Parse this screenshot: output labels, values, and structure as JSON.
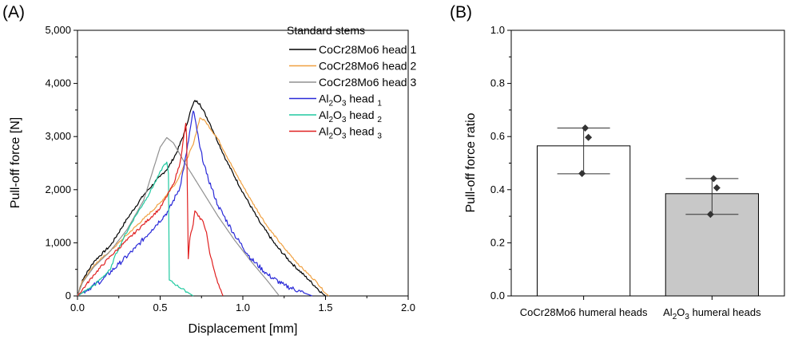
{
  "panel_labels": [
    "(A)",
    "(B)"
  ],
  "chart_data": [
    {
      "type": "line",
      "panel": "(A)",
      "xlabel": "Displacement [mm]",
      "ylabel": "Pull-off force [N]",
      "xlim": [
        0,
        2
      ],
      "ylim": [
        0,
        5000
      ],
      "xticks": [
        "0.0",
        "0.5",
        "1.0",
        "1.5",
        "2.0"
      ],
      "yticks": [
        "0",
        "1,000",
        "2,000",
        "3,000",
        "4,000",
        "5,000"
      ],
      "legend_title": "Standard stems",
      "legend_position": "top-right",
      "series": [
        {
          "name": "CoCr28Mo6 head 1",
          "color": "#000000",
          "noise": 25,
          "points": [
            [
              0,
              0
            ],
            [
              0.03,
              300
            ],
            [
              0.1,
              650
            ],
            [
              0.2,
              950
            ],
            [
              0.3,
              1450
            ],
            [
              0.4,
              1900
            ],
            [
              0.5,
              2250
            ],
            [
              0.55,
              2420
            ],
            [
              0.6,
              2700
            ],
            [
              0.65,
              3100
            ],
            [
              0.68,
              3450
            ],
            [
              0.71,
              3680
            ],
            [
              0.74,
              3620
            ],
            [
              0.8,
              3250
            ],
            [
              0.9,
              2550
            ],
            [
              1.0,
              1950
            ],
            [
              1.1,
              1400
            ],
            [
              1.2,
              950
            ],
            [
              1.3,
              600
            ],
            [
              1.4,
              300
            ],
            [
              1.48,
              50
            ],
            [
              1.5,
              0
            ]
          ]
        },
        {
          "name": "CoCr28Mo6 head 2",
          "color": "#f0a040",
          "noise": 18,
          "points": [
            [
              0,
              0
            ],
            [
              0.03,
              280
            ],
            [
              0.1,
              580
            ],
            [
              0.2,
              850
            ],
            [
              0.3,
              1150
            ],
            [
              0.4,
              1450
            ],
            [
              0.5,
              1750
            ],
            [
              0.6,
              2150
            ],
            [
              0.7,
              2850
            ],
            [
              0.74,
              3350
            ],
            [
              0.77,
              3300
            ],
            [
              0.85,
              2950
            ],
            [
              0.95,
              2350
            ],
            [
              1.05,
              1800
            ],
            [
              1.15,
              1300
            ],
            [
              1.25,
              900
            ],
            [
              1.35,
              550
            ],
            [
              1.45,
              250
            ],
            [
              1.5,
              50
            ],
            [
              1.52,
              0
            ]
          ]
        },
        {
          "name": "CoCr28Mo6 head 3",
          "color": "#909090",
          "noise": 0,
          "points": [
            [
              0,
              0
            ],
            [
              0.03,
              250
            ],
            [
              0.1,
              550
            ],
            [
              0.2,
              850
            ],
            [
              0.3,
              1250
            ],
            [
              0.4,
              1800
            ],
            [
              0.45,
              2300
            ],
            [
              0.5,
              2800
            ],
            [
              0.54,
              2980
            ],
            [
              0.58,
              2880
            ],
            [
              0.65,
              2500
            ],
            [
              0.75,
              2000
            ],
            [
              0.85,
              1500
            ],
            [
              0.95,
              1050
            ],
            [
              1.05,
              650
            ],
            [
              1.15,
              280
            ],
            [
              1.2,
              80
            ],
            [
              1.22,
              0
            ]
          ]
        },
        {
          "name": "Al2O3 head 1",
          "color": "#2a2ad8",
          "noise": 45,
          "points": [
            [
              0,
              0
            ],
            [
              0.05,
              100
            ],
            [
              0.15,
              300
            ],
            [
              0.25,
              600
            ],
            [
              0.35,
              900
            ],
            [
              0.45,
              1250
            ],
            [
              0.55,
              1600
            ],
            [
              0.62,
              2050
            ],
            [
              0.66,
              2700
            ],
            [
              0.69,
              3300
            ],
            [
              0.7,
              3480
            ],
            [
              0.71,
              3350
            ],
            [
              0.74,
              2800
            ],
            [
              0.78,
              2300
            ],
            [
              0.85,
              1700
            ],
            [
              0.95,
              1150
            ],
            [
              1.05,
              700
            ],
            [
              1.15,
              400
            ],
            [
              1.25,
              200
            ],
            [
              1.35,
              80
            ],
            [
              1.42,
              0
            ]
          ]
        },
        {
          "name": "Al2O3 head 2",
          "color": "#20c9a0",
          "noise": 20,
          "points": [
            [
              0,
              0
            ],
            [
              0.05,
              100
            ],
            [
              0.1,
              200
            ],
            [
              0.15,
              350
            ],
            [
              0.2,
              500
            ],
            [
              0.22,
              700
            ],
            [
              0.28,
              1100
            ],
            [
              0.35,
              1500
            ],
            [
              0.42,
              1850
            ],
            [
              0.48,
              2200
            ],
            [
              0.52,
              2450
            ],
            [
              0.54,
              2520
            ],
            [
              0.55,
              2300
            ],
            [
              0.555,
              300
            ],
            [
              0.6,
              200
            ],
            [
              0.65,
              100
            ],
            [
              0.7,
              0
            ]
          ]
        },
        {
          "name": "Al2O3 head 3",
          "color": "#e02020",
          "noise": 25,
          "points": [
            [
              0,
              0
            ],
            [
              0.05,
              200
            ],
            [
              0.1,
              400
            ],
            [
              0.2,
              750
            ],
            [
              0.3,
              1050
            ],
            [
              0.4,
              1350
            ],
            [
              0.5,
              1650
            ],
            [
              0.58,
              2100
            ],
            [
              0.62,
              2500
            ],
            [
              0.655,
              3250
            ],
            [
              0.66,
              3000
            ],
            [
              0.67,
              700
            ],
            [
              0.68,
              1100
            ],
            [
              0.7,
              1350
            ],
            [
              0.71,
              1600
            ],
            [
              0.73,
              1500
            ],
            [
              0.76,
              1400
            ],
            [
              0.78,
              1200
            ],
            [
              0.8,
              800
            ],
            [
              0.83,
              450
            ],
            [
              0.86,
              150
            ],
            [
              0.88,
              0
            ]
          ]
        }
      ]
    },
    {
      "type": "bar",
      "panel": "(B)",
      "ylabel": "Pull-off force ratio",
      "ylim": [
        0,
        1
      ],
      "yticks": [
        "0.0",
        "0.2",
        "0.4",
        "0.6",
        "0.8",
        "1.0"
      ],
      "categories": [
        "CoCr28Mo6 humeral heads",
        "Al2O3 humeral heads"
      ],
      "values": [
        0.565,
        0.385
      ],
      "errors": [
        [
          0.46,
          0.632
        ],
        [
          0.307,
          0.442
        ]
      ],
      "points": [
        [
          0.632,
          0.597,
          0.461
        ],
        [
          0.442,
          0.407,
          0.307
        ]
      ],
      "bar_colors": [
        "#ffffff",
        "#c8c8c8"
      ]
    }
  ]
}
